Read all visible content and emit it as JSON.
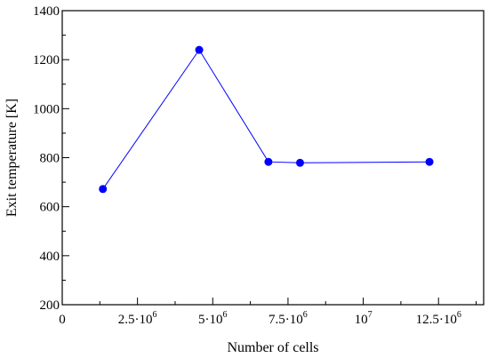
{
  "chart_data": {
    "type": "line",
    "title": "",
    "xlabel": "Number of cells",
    "ylabel": "Exit temperature [K]",
    "xlim": [
      0,
      14000000
    ],
    "ylim": [
      200,
      1400
    ],
    "grid": false,
    "legend": "none",
    "x_ticks": [
      {
        "value": 0,
        "base": "0",
        "exp": ""
      },
      {
        "value": 2500000,
        "base": "2.5·10",
        "exp": "6"
      },
      {
        "value": 5000000,
        "base": "5·10",
        "exp": "6"
      },
      {
        "value": 7500000,
        "base": "7.5·10",
        "exp": "6"
      },
      {
        "value": 10000000,
        "base": "10",
        "exp": "7"
      },
      {
        "value": 12500000,
        "base": "12.5·10",
        "exp": "6"
      }
    ],
    "y_ticks": [
      200,
      400,
      600,
      800,
      1000,
      1200,
      1400
    ],
    "series": [
      {
        "color": "#0000ff",
        "marker": "circle",
        "x": [
          1350000,
          4550000,
          6850000,
          7900000,
          12200000
        ],
        "y": [
          672,
          1240,
          783,
          779,
          783
        ]
      }
    ]
  }
}
